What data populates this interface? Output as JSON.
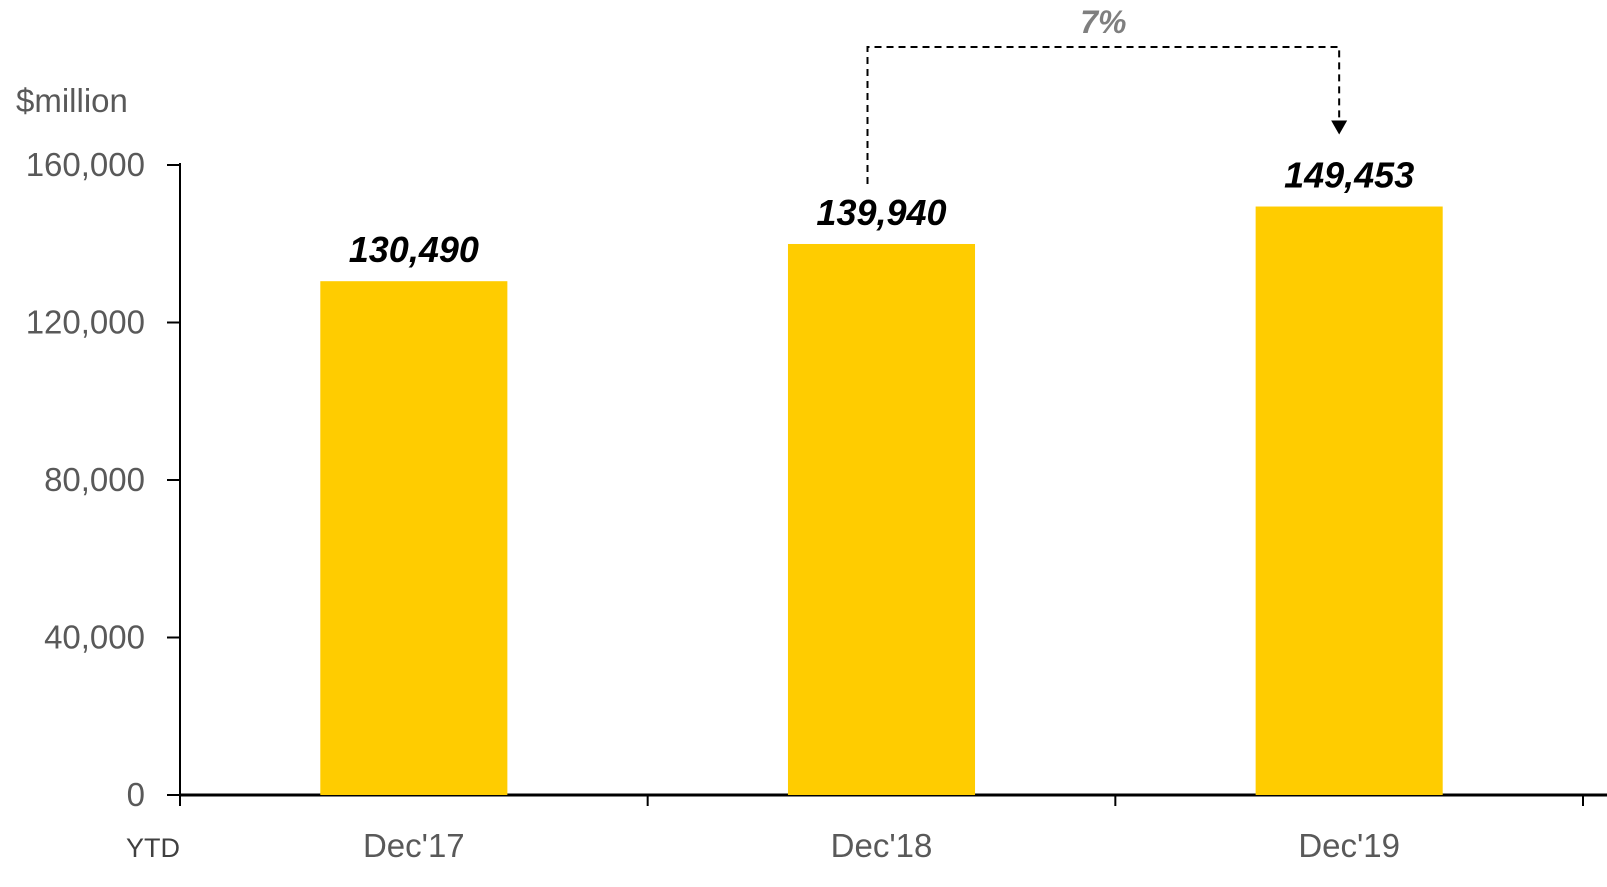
{
  "chart_data": {
    "type": "bar",
    "unit_label": "$million",
    "period_label": "YTD",
    "categories": [
      "Dec'17",
      "Dec'18",
      "Dec'19"
    ],
    "values": [
      130490,
      139940,
      149453
    ],
    "value_labels": [
      "130,490",
      "139,940",
      "149,453"
    ],
    "ylim": [
      0,
      160000
    ],
    "yticks": [
      0,
      40000,
      80000,
      120000,
      160000
    ],
    "ytick_labels": [
      "0",
      "40,000",
      "80,000",
      "120,000",
      "160,000"
    ],
    "bar_color": "#FFCC00",
    "grid": false,
    "annotation": {
      "text": "7%",
      "from": "Dec'18",
      "to": "Dec'19"
    }
  }
}
